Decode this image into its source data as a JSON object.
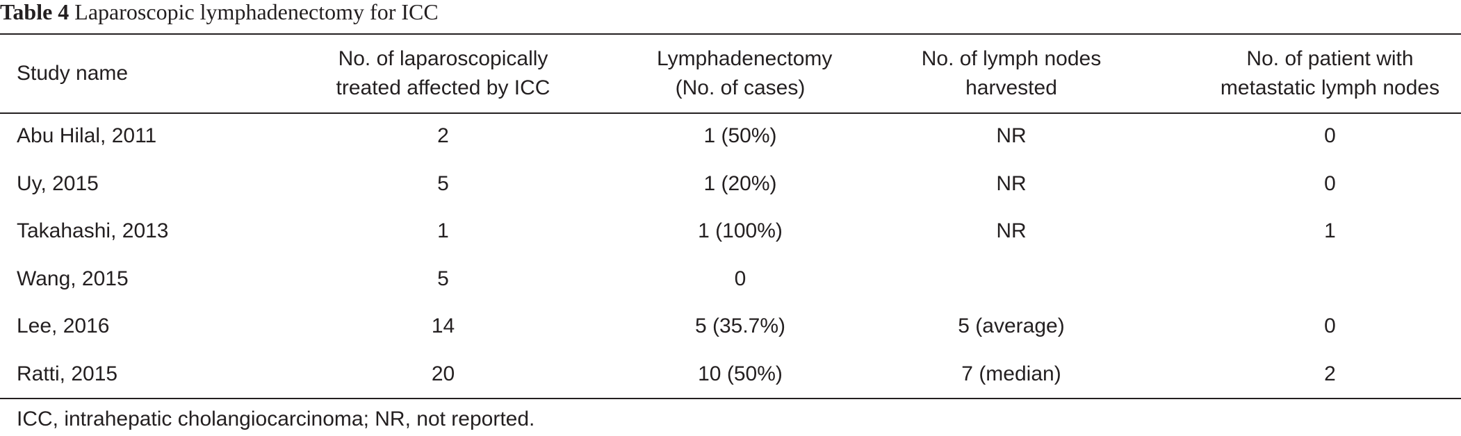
{
  "caption": {
    "label": "Table 4",
    "title": "Laparoscopic lymphadenectomy for ICC"
  },
  "table": {
    "headers": [
      [
        "Study name"
      ],
      [
        "No. of laparoscopically",
        "treated affected by ICC"
      ],
      [
        "Lymphadenectomy",
        "(No. of cases)"
      ],
      [
        "No. of lymph nodes",
        "harvested"
      ],
      [
        "No. of patient with",
        "metastatic lymph nodes"
      ]
    ],
    "rows": [
      [
        "Abu Hilal, 2011",
        "2",
        "1 (50%)",
        "NR",
        "0"
      ],
      [
        "Uy, 2015",
        "5",
        "1 (20%)",
        "NR",
        "0"
      ],
      [
        "Takahashi, 2013",
        "1",
        "1 (100%)",
        "NR",
        "1"
      ],
      [
        "Wang, 2015",
        "5",
        "0",
        "",
        ""
      ],
      [
        "Lee, 2016",
        "14",
        "5 (35.7%)",
        "5 (average)",
        "0"
      ],
      [
        "Ratti, 2015",
        "20",
        "10 (50%)",
        "7 (median)",
        "2"
      ]
    ]
  },
  "footnote": "ICC, intrahepatic cholangiocarcinoma; NR, not reported."
}
